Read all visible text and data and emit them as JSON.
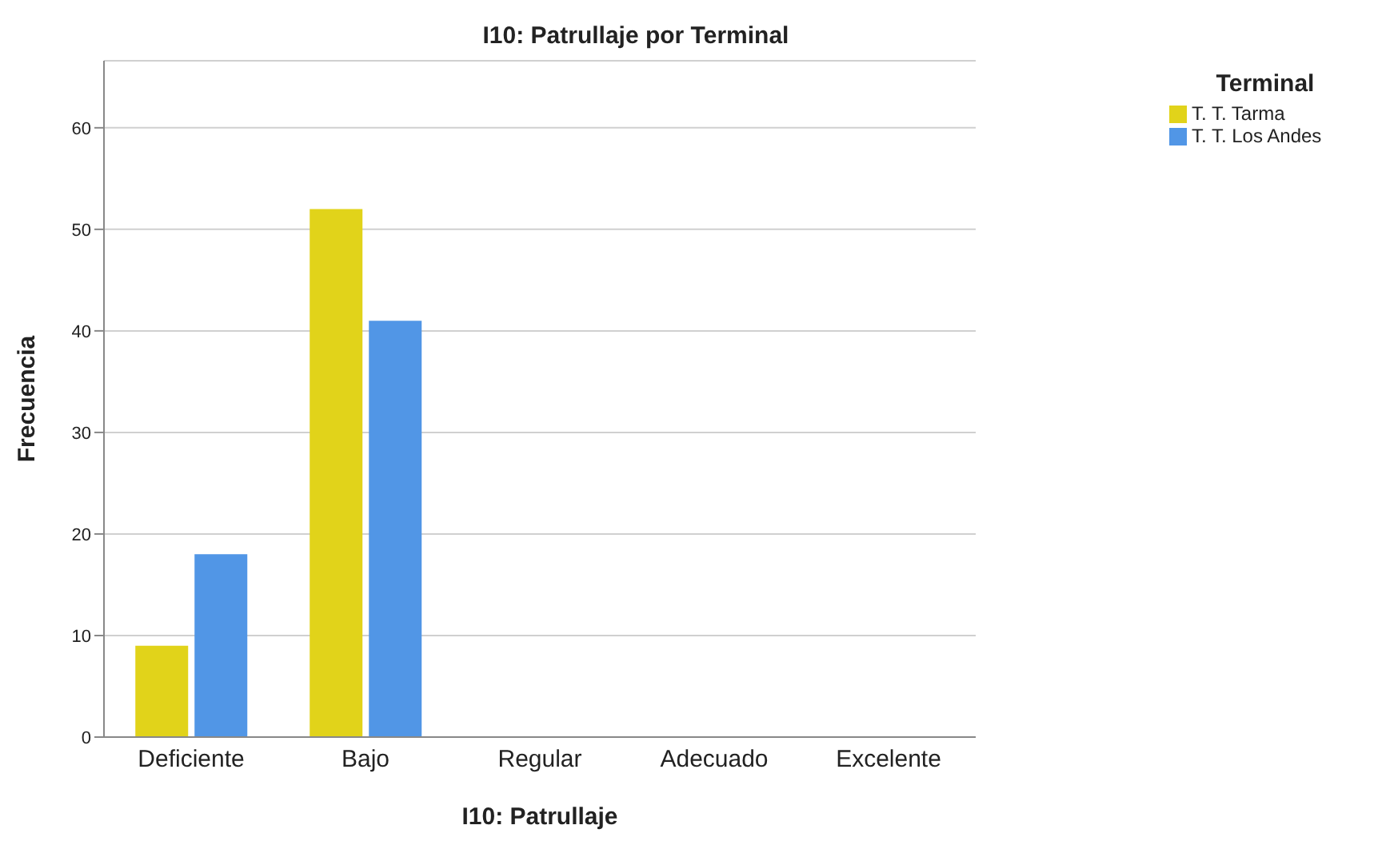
{
  "chart_data": {
    "type": "bar",
    "title": "I10: Patrullaje por Terminal",
    "xlabel": "I10: Patrullaje",
    "ylabel": "Frecuencia",
    "legend_title": "Terminal",
    "categories": [
      "Deficiente",
      "Bajo",
      "Regular",
      "Adecuado",
      "Excelente"
    ],
    "series": [
      {
        "name": "T. T. Tarma",
        "color": "#e1d31a",
        "values": [
          9,
          52,
          0,
          0,
          0
        ]
      },
      {
        "name": "T. T. Los Andes",
        "color": "#5196e6",
        "values": [
          18,
          41,
          0,
          0,
          0
        ]
      }
    ],
    "ylim": [
      0,
      66.6
    ],
    "yticks": [
      0,
      10,
      20,
      30,
      40,
      50,
      60
    ],
    "grid": "y",
    "legend": "top right"
  }
}
